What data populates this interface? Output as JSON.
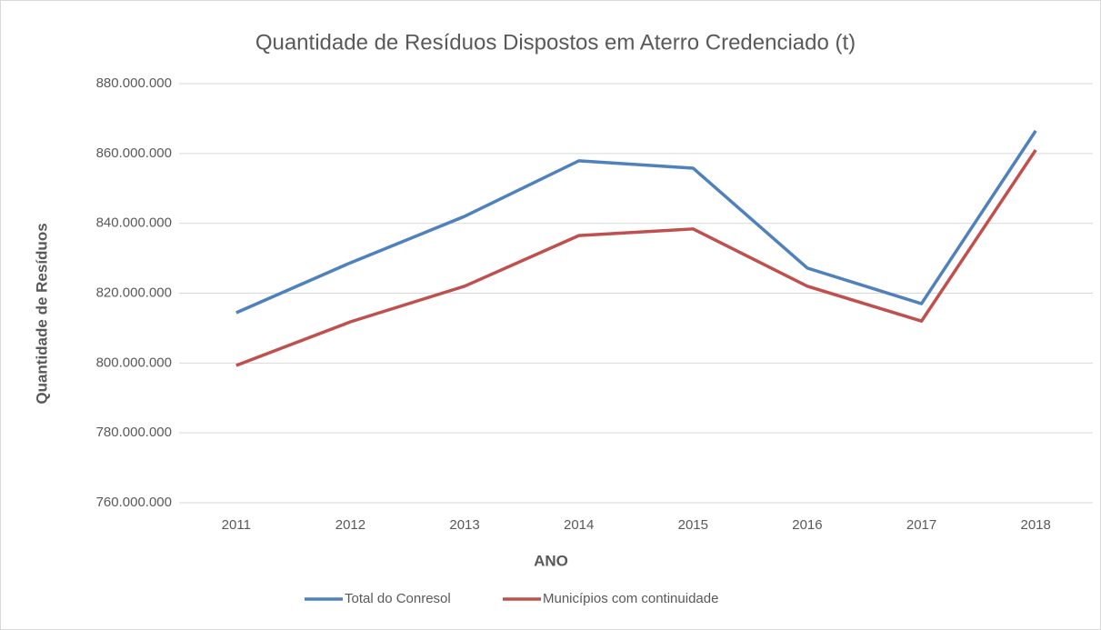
{
  "chart_data": {
    "type": "line",
    "title": "Quantidade de Resíduos Dispostos em Aterro Credenciado (t)",
    "x_label": "ANO",
    "y_label": "Quantidade de Resíduos",
    "categories": [
      "2011",
      "2012",
      "2013",
      "2014",
      "2015",
      "2016",
      "2017",
      "2018"
    ],
    "series": [
      {
        "name": "Total do Conresol",
        "color": "#4f81bd",
        "values": [
          814400000,
          828700000,
          842000000,
          857900000,
          855800000,
          827200000,
          817000000,
          866500000
        ]
      },
      {
        "name": "Municípios com continuidade",
        "color": "#c0504d",
        "values": [
          799300000,
          811800000,
          822000000,
          836500000,
          838400000,
          822000000,
          812000000,
          861000000
        ]
      }
    ],
    "ylim": [
      760000000,
      880000000
    ],
    "yticks": [
      {
        "value": 760000000,
        "label": "760.000.000"
      },
      {
        "value": 780000000,
        "label": "780.000.000"
      },
      {
        "value": 800000000,
        "label": "800.000.000"
      },
      {
        "value": 820000000,
        "label": "820.000.000"
      },
      {
        "value": 840000000,
        "label": "840.000.000"
      },
      {
        "value": 860000000,
        "label": "860.000.000"
      },
      {
        "value": 880000000,
        "label": "880.000.000"
      }
    ],
    "grid": true,
    "legend": "bottom"
  }
}
